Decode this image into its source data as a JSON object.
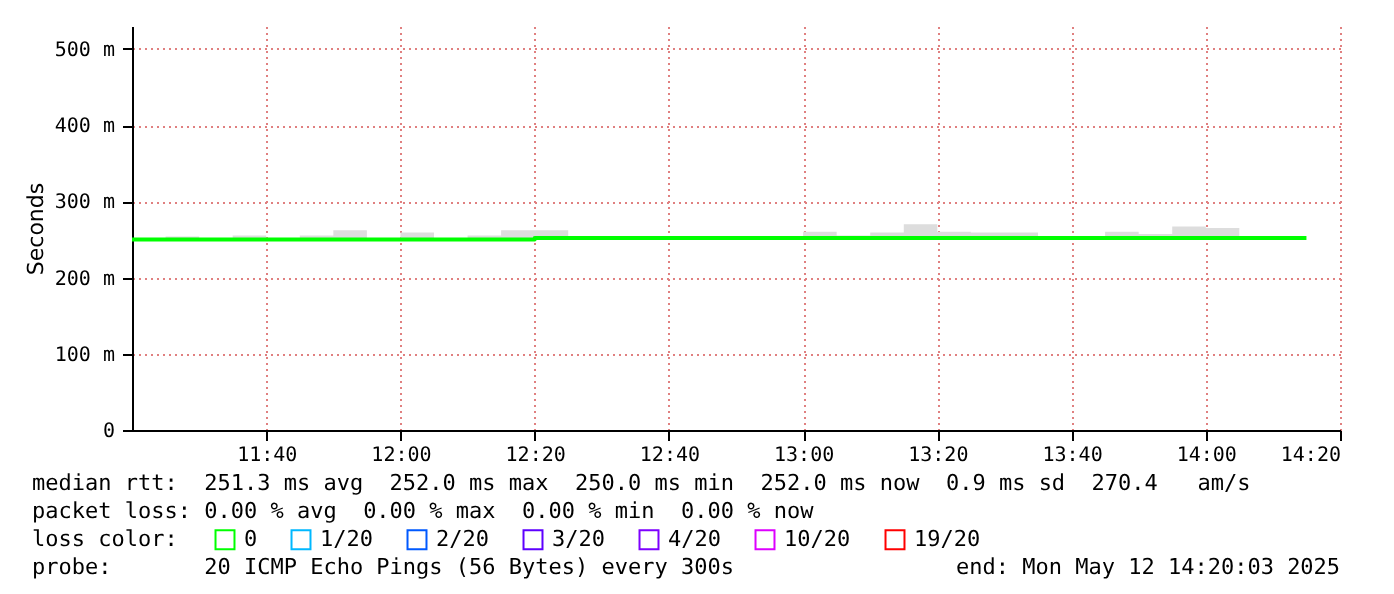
{
  "chart_data": {
    "type": "step",
    "ylabel": "Seconds",
    "x": [
      "2025-05-12T11:20",
      "2025-05-12T11:25",
      "2025-05-12T11:30",
      "2025-05-12T11:35",
      "2025-05-12T11:40",
      "2025-05-12T11:45",
      "2025-05-12T11:50",
      "2025-05-12T11:55",
      "2025-05-12T12:00",
      "2025-05-12T12:05",
      "2025-05-12T12:10",
      "2025-05-12T12:15",
      "2025-05-12T12:20",
      "2025-05-12T12:25",
      "2025-05-12T12:30",
      "2025-05-12T12:35",
      "2025-05-12T12:40",
      "2025-05-12T12:45",
      "2025-05-12T12:50",
      "2025-05-12T12:55",
      "2025-05-12T13:00",
      "2025-05-12T13:05",
      "2025-05-12T13:10",
      "2025-05-12T13:15",
      "2025-05-12T13:20",
      "2025-05-12T13:25",
      "2025-05-12T13:30",
      "2025-05-12T13:35",
      "2025-05-12T13:40",
      "2025-05-12T13:45",
      "2025-05-12T13:50",
      "2025-05-12T13:55",
      "2025-05-12T14:00",
      "2025-05-12T14:05",
      "2025-05-12T14:10",
      "2025-05-12T14:15"
    ],
    "series": [
      {
        "name": "0",
        "color": "#00ff00",
        "values": [
          250,
          250,
          250,
          250,
          250,
          250,
          250,
          250,
          250,
          250,
          250,
          250,
          252,
          252,
          252,
          252,
          252,
          252,
          252,
          252,
          252,
          252,
          252,
          252,
          252,
          252,
          252,
          252,
          252,
          252,
          252,
          252,
          252,
          252,
          252,
          252
        ],
        "lower": [
          252,
          252,
          252,
          252,
          252,
          252,
          252,
          252,
          252,
          252,
          252,
          252,
          254,
          254,
          254,
          254,
          254,
          254,
          254,
          254,
          254,
          254,
          254,
          254,
          254,
          254,
          254,
          254,
          254,
          254,
          254,
          254,
          254,
          254,
          254,
          254
        ],
        "upper": [
          252,
          254,
          252,
          255,
          252,
          255,
          262,
          252,
          259,
          252,
          255,
          262,
          262,
          254,
          254,
          254,
          254,
          254,
          254,
          254,
          260,
          255,
          259,
          270,
          260,
          259,
          259,
          254,
          254,
          260,
          257,
          267,
          265,
          254,
          254,
          254
        ]
      },
      {
        "name": "1/20",
        "color": "#00b8ff",
        "values": [
          null,
          null,
          null,
          null,
          null,
          null,
          null,
          null,
          null,
          null,
          null,
          null,
          null,
          null,
          null,
          null,
          null,
          null,
          null,
          null,
          null,
          null,
          null,
          null,
          null,
          null,
          null,
          null,
          null,
          null,
          null,
          null,
          null,
          null,
          null,
          null
        ]
      },
      {
        "name": "2/20",
        "color": "#0059ff",
        "values": [
          null,
          null,
          null,
          null,
          null,
          null,
          null,
          null,
          null,
          null,
          null,
          null,
          null,
          null,
          null,
          null,
          null,
          null,
          null,
          null,
          null,
          null,
          null,
          null,
          null,
          null,
          null,
          null,
          null,
          null,
          null,
          null,
          null,
          null,
          null,
          null
        ]
      },
      {
        "name": "3/20",
        "color": "#5e00ff",
        "values": [
          null,
          null,
          null,
          null,
          null,
          null,
          null,
          null,
          null,
          null,
          null,
          null,
          null,
          null,
          null,
          null,
          null,
          null,
          null,
          null,
          null,
          null,
          null,
          null,
          null,
          null,
          null,
          null,
          null,
          null,
          null,
          null,
          null,
          null,
          null,
          null
        ]
      },
      {
        "name": "4/20",
        "color": "#7e00ff",
        "values": [
          null,
          null,
          null,
          null,
          null,
          null,
          null,
          null,
          null,
          null,
          null,
          null,
          null,
          null,
          null,
          null,
          null,
          null,
          null,
          null,
          null,
          null,
          null,
          null,
          null,
          null,
          null,
          null,
          null,
          null,
          null,
          null,
          null,
          null,
          null,
          null
        ]
      },
      {
        "name": "10/20",
        "color": "#dd00ff",
        "values": [
          null,
          null,
          null,
          null,
          null,
          null,
          null,
          null,
          null,
          null,
          null,
          null,
          null,
          null,
          null,
          null,
          null,
          null,
          null,
          null,
          null,
          null,
          null,
          null,
          null,
          null,
          null,
          null,
          null,
          null,
          null,
          null,
          null,
          null,
          null,
          null
        ]
      },
      {
        "name": "19/20",
        "color": "#ff0000",
        "values": [
          null,
          null,
          null,
          null,
          null,
          null,
          null,
          null,
          null,
          null,
          null,
          null,
          null,
          null,
          null,
          null,
          null,
          null,
          null,
          null,
          null,
          null,
          null,
          null,
          null,
          null,
          null,
          null,
          null,
          null,
          null,
          null,
          null,
          null,
          null,
          null
        ]
      }
    ],
    "legend_title": "loss color:",
    "legend": "bottom",
    "xlim": [
      "2025-05-12T11:20",
      "2025-05-12T14:20"
    ],
    "xticks": [
      {
        "value": "2025-05-12T11:40",
        "label": "11:40"
      },
      {
        "value": "2025-05-12T12:00",
        "label": "12:00"
      },
      {
        "value": "2025-05-12T12:20",
        "label": "12:20"
      },
      {
        "value": "2025-05-12T12:40",
        "label": "12:40"
      },
      {
        "value": "2025-05-12T13:00",
        "label": "13:00"
      },
      {
        "value": "2025-05-12T13:20",
        "label": "13:20"
      },
      {
        "value": "2025-05-12T13:40",
        "label": "13:40"
      },
      {
        "value": "2025-05-12T14:00",
        "label": "14:00"
      },
      {
        "value": "2025-05-12T14:20",
        "label": "14:20"
      }
    ],
    "ylim": [
      0,
      530
    ],
    "yticks": [
      0,
      {
        "value": 100,
        "label": "100 m"
      },
      {
        "value": 200,
        "label": "200 m"
      },
      {
        "value": 300,
        "label": "300 m"
      },
      {
        "value": 400,
        "label": "400 m"
      },
      {
        "value": 500,
        "label": "500 m"
      }
    ],
    "grid": true,
    "annotations": [
      "median rtt:  251.3 ms avg  252.0 ms max  250.0 ms min  252.0 ms now  0.9 ms sd  270.4   am/s",
      "packet loss: 0.00 % avg  0.00 % max  0.00 % min  0.00 % now",
      "probe:       20 ICMP Echo Pings (56 Bytes) every 300s",
      "end: Mon May 12 14:20:03 2025"
    ]
  }
}
